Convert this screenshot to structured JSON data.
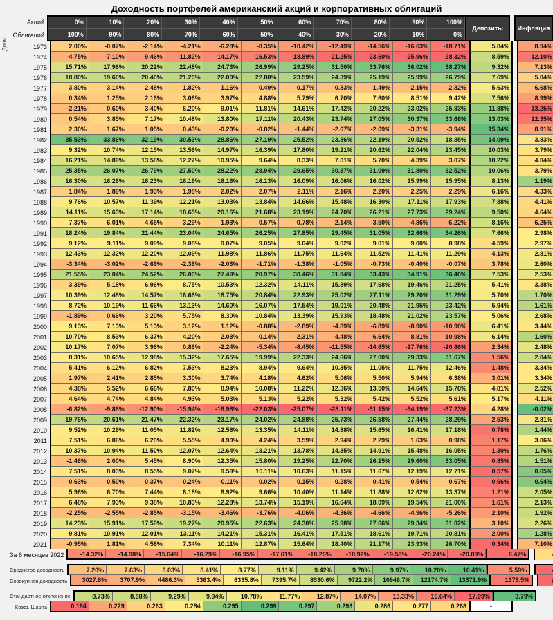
{
  "title": "Доходность портфелей американский акций и корпоративных облигаций",
  "header": {
    "share_label": "Доля",
    "stocks_label": "Акций",
    "bonds_label": "Облигаций",
    "stocks_pcts": [
      "0%",
      "10%",
      "20%",
      "30%",
      "40%",
      "50%",
      "60%",
      "70%",
      "80%",
      "90%",
      "100%"
    ],
    "bonds_pcts": [
      "100%",
      "90%",
      "80%",
      "70%",
      "60%",
      "50%",
      "40%",
      "30%",
      "20%",
      "10%",
      "0%"
    ],
    "deposits_label": "Депозиты",
    "inflation_label": "Инфляция"
  },
  "colors": {
    "page_bg": "#F1F1EF",
    "header_bg": "#3B3B3B",
    "header_text": "#FFFFFF",
    "grid_line": "#6E6E6E",
    "block_border": "#000000",
    "scale_red": "#F8696B",
    "scale_yellow": "#FFEB84",
    "scale_green": "#63BE7B",
    "dash_bg": "#FFFFFF"
  },
  "color_scales": {
    "main": {
      "min": -22.0,
      "mid": 9.0,
      "max": 38.3,
      "invert": false
    },
    "deposit": {
      "min": 0.3,
      "mid": 5.1,
      "max": 15.4,
      "invert": false
    },
    "inflation": {
      "min": -0.1,
      "mid": 3.0,
      "max": 13.3,
      "invert": true
    },
    "avg": {
      "min": 4.25,
      "mid": 8.77,
      "max": 10.41,
      "invert": false
    },
    "cum": {
      "min": 685.8,
      "mid": 6335.8,
      "max": 13371.9,
      "invert": false
    },
    "std": {
      "min": 3.79,
      "mid": 11.3,
      "max": 17.99,
      "invert": true
    },
    "sharpe": {
      "min": 0.184,
      "mid": 0.284,
      "max": 0.299,
      "invert": false
    }
  },
  "chart_data": {
    "type": "heatmap",
    "columns": [
      "0/100",
      "10/90",
      "20/80",
      "30/70",
      "40/60",
      "50/50",
      "60/40",
      "70/30",
      "80/20",
      "90/10",
      "100/0",
      "Депозиты",
      "Инфляция"
    ],
    "rows": [
      {
        "label": "1973",
        "values": [
          2.0,
          -0.07,
          -2.14,
          -4.21,
          -6.28,
          -8.35,
          -10.42,
          -12.49,
          -14.56,
          -16.63,
          -18.71
        ],
        "deposit": 5.84,
        "inflation": 8.94
      },
      {
        "label": "1974",
        "values": [
          -4.75,
          -7.1,
          -9.46,
          -11.82,
          -14.17,
          -16.53,
          -18.89,
          -21.25,
          -23.6,
          -25.96,
          -28.32
        ],
        "deposit": 8.59,
        "inflation": 12.1
      },
      {
        "label": "1975",
        "values": [
          15.71,
          17.96,
          20.22,
          22.48,
          24.73,
          26.99,
          29.25,
          31.5,
          33.76,
          36.02,
          38.27
        ],
        "deposit": 9.32,
        "inflation": 7.13
      },
      {
        "label": "1976",
        "values": [
          18.8,
          19.6,
          20.4,
          21.2,
          22.0,
          22.8,
          23.59,
          24.39,
          25.19,
          25.99,
          26.79
        ],
        "deposit": 7.69,
        "inflation": 5.04
      },
      {
        "label": "1977",
        "values": [
          3.8,
          3.14,
          2.48,
          1.82,
          1.16,
          0.49,
          -0.17,
          -0.83,
          -1.49,
          -2.15,
          -2.82
        ],
        "deposit": 5.63,
        "inflation": 6.68
      },
      {
        "label": "1978",
        "values": [
          0.34,
          1.25,
          2.16,
          3.06,
          3.97,
          4.88,
          5.79,
          6.7,
          7.6,
          8.51,
          9.42
        ],
        "deposit": 7.56,
        "inflation": 8.99
      },
      {
        "label": "1979",
        "values": [
          -2.21,
          0.6,
          3.4,
          6.2,
          9.01,
          11.81,
          14.61,
          17.42,
          20.22,
          23.02,
          25.83
        ],
        "deposit": 11.88,
        "inflation": 13.25
      },
      {
        "label": "1980",
        "values": [
          0.54,
          3.85,
          7.17,
          10.48,
          13.8,
          17.11,
          20.43,
          23.74,
          27.05,
          30.37,
          33.68
        ],
        "deposit": 13.03,
        "inflation": 12.35
      },
      {
        "label": "1981",
        "values": [
          2.3,
          1.67,
          1.05,
          0.43,
          -0.2,
          -0.82,
          -1.44,
          -2.07,
          -2.69,
          -3.31,
          -3.94
        ],
        "deposit": 15.34,
        "inflation": 8.91
      },
      {
        "label": "1982",
        "values": [
          35.53,
          33.86,
          32.19,
          30.53,
          28.86,
          27.19,
          25.52,
          23.86,
          22.19,
          20.52,
          18.85
        ],
        "deposit": 14.09,
        "inflation": 3.83
      },
      {
        "label": "1983",
        "values": [
          9.32,
          10.74,
          12.15,
          13.56,
          14.97,
          16.39,
          17.8,
          19.21,
          20.62,
          22.04,
          23.45
        ],
        "deposit": 10.03,
        "inflation": 3.79
      },
      {
        "label": "1984",
        "values": [
          16.21,
          14.89,
          13.58,
          12.27,
          10.95,
          9.64,
          8.33,
          7.01,
          5.7,
          4.39,
          3.07
        ],
        "deposit": 10.22,
        "inflation": 4.04
      },
      {
        "label": "1985",
        "values": [
          25.35,
          26.07,
          26.79,
          27.5,
          28.22,
          28.94,
          29.65,
          30.37,
          31.09,
          31.8,
          32.52
        ],
        "deposit": 10.06,
        "inflation": 3.79
      },
      {
        "label": "1986",
        "values": [
          16.3,
          16.26,
          16.23,
          16.19,
          16.16,
          16.13,
          16.09,
          16.06,
          16.02,
          15.99,
          15.95
        ],
        "deposit": 8.13,
        "inflation": 1.19
      },
      {
        "label": "1987",
        "values": [
          1.84,
          1.89,
          1.93,
          1.98,
          2.02,
          2.07,
          2.11,
          2.16,
          2.2,
          2.25,
          2.29
        ],
        "deposit": 6.16,
        "inflation": 4.33
      },
      {
        "label": "1988",
        "values": [
          9.76,
          10.57,
          11.39,
          12.21,
          13.03,
          13.84,
          14.66,
          15.48,
          16.3,
          17.11,
          17.93
        ],
        "deposit": 7.88,
        "inflation": 4.41
      },
      {
        "label": "1989",
        "values": [
          14.11,
          15.63,
          17.14,
          18.65,
          20.16,
          21.68,
          23.19,
          24.7,
          26.21,
          27.73,
          29.24
        ],
        "deposit": 9.5,
        "inflation": 4.64
      },
      {
        "label": "1990",
        "values": [
          7.37,
          6.01,
          4.65,
          3.29,
          1.93,
          0.57,
          -0.78,
          -2.14,
          -3.5,
          -4.86,
          -6.22
        ],
        "deposit": 8.16,
        "inflation": 6.25
      },
      {
        "label": "1991",
        "values": [
          18.24,
          19.84,
          21.44,
          23.04,
          24.65,
          26.25,
          27.85,
          29.45,
          31.05,
          32.66,
          34.26
        ],
        "deposit": 7.66,
        "inflation": 2.98
      },
      {
        "label": "1992",
        "values": [
          9.12,
          9.11,
          9.09,
          9.08,
          9.07,
          9.05,
          9.04,
          9.02,
          9.01,
          9.0,
          8.98
        ],
        "deposit": 4.59,
        "inflation": 2.97
      },
      {
        "label": "1993",
        "values": [
          12.43,
          12.32,
          12.2,
          12.09,
          11.98,
          11.86,
          11.75,
          11.64,
          11.52,
          11.41,
          11.29
        ],
        "deposit": 4.13,
        "inflation": 2.81
      },
      {
        "label": "1994",
        "values": [
          -3.34,
          -3.02,
          -2.69,
          -2.36,
          -2.03,
          -1.71,
          -1.38,
          -1.05,
          -0.73,
          -0.4,
          -0.07
        ],
        "deposit": 3.78,
        "inflation": 2.6
      },
      {
        "label": "1995",
        "values": [
          21.55,
          23.04,
          24.52,
          26.0,
          27.49,
          28.97,
          30.46,
          31.94,
          33.43,
          34.91,
          36.4
        ],
        "deposit": 7.53,
        "inflation": 2.53
      },
      {
        "label": "1996",
        "values": [
          3.39,
          5.18,
          6.96,
          8.75,
          10.53,
          12.32,
          14.11,
          15.89,
          17.68,
          19.46,
          21.25
        ],
        "deposit": 5.41,
        "inflation": 3.38
      },
      {
        "label": "1997",
        "values": [
          10.39,
          12.48,
          14.57,
          16.66,
          18.75,
          20.84,
          22.93,
          25.02,
          27.11,
          29.2,
          31.29
        ],
        "deposit": 5.7,
        "inflation": 1.7
      },
      {
        "label": "1998",
        "values": [
          8.72,
          10.19,
          11.66,
          13.13,
          14.6,
          16.07,
          17.54,
          19.01,
          20.48,
          21.95,
          23.42
        ],
        "deposit": 5.94,
        "inflation": 1.61
      },
      {
        "label": "1999",
        "values": [
          -1.89,
          0.66,
          3.2,
          5.75,
          8.3,
          10.84,
          13.39,
          15.93,
          18.48,
          21.02,
          23.57
        ],
        "deposit": 5.06,
        "inflation": 2.68
      },
      {
        "label": "2000",
        "values": [
          9.13,
          7.13,
          5.13,
          3.12,
          1.12,
          -0.88,
          -2.89,
          -4.89,
          -6.89,
          -8.9,
          -10.9
        ],
        "deposit": 6.41,
        "inflation": 3.44
      },
      {
        "label": "2001",
        "values": [
          10.7,
          8.53,
          6.37,
          4.2,
          2.03,
          -0.14,
          -2.31,
          -4.48,
          -6.64,
          -8.81,
          -10.98
        ],
        "deposit": 6.14,
        "inflation": 1.6
      },
      {
        "label": "2002",
        "values": [
          10.17,
          7.07,
          3.96,
          0.86,
          -2.24,
          -5.34,
          -8.45,
          -11.55,
          -14.65,
          -17.76,
          -20.86
        ],
        "deposit": 2.34,
        "inflation": 2.48
      },
      {
        "label": "2003",
        "values": [
          8.31,
          10.65,
          12.98,
          15.32,
          17.65,
          19.99,
          22.33,
          24.66,
          27.0,
          29.33,
          31.67
        ],
        "deposit": 1.56,
        "inflation": 2.04
      },
      {
        "label": "2004",
        "values": [
          5.41,
          6.12,
          6.82,
          7.53,
          8.23,
          8.94,
          9.64,
          10.35,
          11.05,
          11.75,
          12.46
        ],
        "deposit": 1.48,
        "inflation": 3.34
      },
      {
        "label": "2005",
        "values": [
          1.97,
          2.41,
          2.85,
          3.3,
          3.74,
          4.18,
          4.62,
          5.06,
          5.5,
          5.94,
          6.38
        ],
        "deposit": 3.01,
        "inflation": 3.34
      },
      {
        "label": "2006",
        "values": [
          4.38,
          5.52,
          6.66,
          7.8,
          8.94,
          10.08,
          11.22,
          12.36,
          13.5,
          14.64,
          15.78
        ],
        "deposit": 4.81,
        "inflation": 2.52
      },
      {
        "label": "2007",
        "values": [
          4.64,
          4.74,
          4.84,
          4.93,
          5.03,
          5.13,
          5.22,
          5.32,
          5.42,
          5.52,
          5.61
        ],
        "deposit": 5.17,
        "inflation": 4.11
      },
      {
        "label": "2008",
        "values": [
          -6.82,
          -9.86,
          -12.9,
          -15.94,
          -18.98,
          -22.03,
          -25.07,
          -28.11,
          -31.15,
          -34.19,
          -37.23
        ],
        "deposit": 4.28,
        "inflation": -0.02
      },
      {
        "label": "2009",
        "values": [
          19.76,
          20.61,
          21.47,
          22.32,
          23.17,
          24.02,
          24.88,
          25.73,
          26.58,
          27.44,
          28.29
        ],
        "deposit": 2.53,
        "inflation": 2.81
      },
      {
        "label": "2010",
        "values": [
          9.52,
          10.29,
          11.05,
          11.82,
          12.58,
          13.35,
          14.11,
          14.88,
          15.65,
          16.41,
          17.18
        ],
        "deposit": 0.78,
        "inflation": 1.44
      },
      {
        "label": "2011",
        "values": [
          7.51,
          6.86,
          6.2,
          5.55,
          4.9,
          4.24,
          3.59,
          2.94,
          2.29,
          1.63,
          0.98
        ],
        "deposit": 1.17,
        "inflation": 3.06
      },
      {
        "label": "2012",
        "values": [
          10.37,
          10.94,
          11.5,
          12.07,
          12.64,
          13.21,
          13.78,
          14.35,
          14.91,
          15.48,
          16.05
        ],
        "deposit": 1.3,
        "inflation": 1.76
      },
      {
        "label": "2013",
        "values": [
          -1.46,
          2.0,
          5.45,
          8.9,
          12.35,
          15.8,
          19.25,
          22.7,
          26.15,
          29.6,
          33.05
        ],
        "deposit": 0.85,
        "inflation": 1.51
      },
      {
        "label": "2014",
        "values": [
          7.51,
          8.03,
          8.55,
          9.07,
          9.59,
          10.11,
          10.63,
          11.15,
          11.67,
          12.19,
          12.71
        ],
        "deposit": 0.57,
        "inflation": 0.65
      },
      {
        "label": "2015",
        "values": [
          -0.63,
          -0.5,
          -0.37,
          -0.24,
          -0.11,
          0.02,
          0.15,
          0.28,
          0.41,
          0.54,
          0.67
        ],
        "deposit": 0.66,
        "inflation": 0.64
      },
      {
        "label": "2016",
        "values": [
          5.96,
          6.7,
          7.44,
          8.18,
          8.92,
          9.66,
          10.4,
          11.14,
          11.88,
          12.62,
          13.37
        ],
        "deposit": 1.21,
        "inflation": 2.05
      },
      {
        "label": "2017",
        "values": [
          6.48,
          7.93,
          9.38,
          10.83,
          12.28,
          13.74,
          15.19,
          16.64,
          18.09,
          19.54,
          21.0
        ],
        "deposit": 1.61,
        "inflation": 2.13
      },
      {
        "label": "2018",
        "values": [
          -2.25,
          -2.55,
          -2.85,
          -3.15,
          -3.46,
          -3.76,
          -4.06,
          -4.36,
          -4.66,
          -4.96,
          -5.26
        ],
        "deposit": 2.1,
        "inflation": 1.92
      },
      {
        "label": "2019",
        "values": [
          14.23,
          15.91,
          17.59,
          19.27,
          20.95,
          22.63,
          24.3,
          25.98,
          27.66,
          29.34,
          31.02
        ],
        "deposit": 3.1,
        "inflation": 2.26
      },
      {
        "label": "2020",
        "values": [
          9.81,
          10.91,
          12.01,
          13.11,
          14.21,
          15.31,
          16.41,
          17.51,
          18.61,
          19.71,
          20.81
        ],
        "deposit": 2.0,
        "inflation": 1.28
      },
      {
        "label": "2021",
        "values": [
          -0.95,
          1.81,
          4.58,
          7.34,
          10.11,
          12.87,
          15.64,
          18.4,
          21.17,
          23.93,
          26.7
        ],
        "deposit": 0.34,
        "inflation": 7.1
      },
      {
        "label": "За 6 месяцев 2022",
        "values": [
          -14.32,
          -14.98,
          -15.64,
          -16.29,
          -16.95,
          -17.61,
          -18.26,
          -18.92,
          -19.58,
          -20.24,
          -20.89
        ],
        "deposit": 0.47,
        "inflation": 4.05
      }
    ],
    "summary": [
      {
        "label": "Среднегод доходность",
        "format": "pct2",
        "scale": "avg",
        "block": 1,
        "values": [
          7.2,
          7.63,
          8.03,
          8.41,
          8.77,
          9.11,
          9.42,
          9.7,
          9.97,
          10.2,
          10.41
        ],
        "deposit": 5.59,
        "inflation": 4.25
      },
      {
        "label": "Совокупная доходность",
        "format": "pct1",
        "scale": "cum",
        "block": 1,
        "values": [
          3027.6,
          3707.9,
          4486.3,
          5363.4,
          6335.8,
          7395.7,
          8530.6,
          9722.2,
          10946.7,
          12174.7,
          13371.9
        ],
        "deposit": 1378.5,
        "inflation": 685.8
      },
      {
        "label": "Стандартное отклонение",
        "format": "pct2",
        "scale": "std",
        "block": 2,
        "values": [
          8.73,
          8.88,
          9.29,
          9.94,
          10.78,
          11.77,
          12.87,
          14.07,
          15.33,
          16.64,
          17.99
        ],
        "deposit": 3.79
      },
      {
        "label": "Коэф. Шарпа",
        "format": "num3",
        "scale": "sharpe",
        "block": 2,
        "values": [
          0.184,
          0.229,
          0.263,
          0.284,
          0.295,
          0.299,
          0.297,
          0.293,
          0.286,
          0.277,
          0.268
        ],
        "deposit": "-"
      }
    ]
  }
}
